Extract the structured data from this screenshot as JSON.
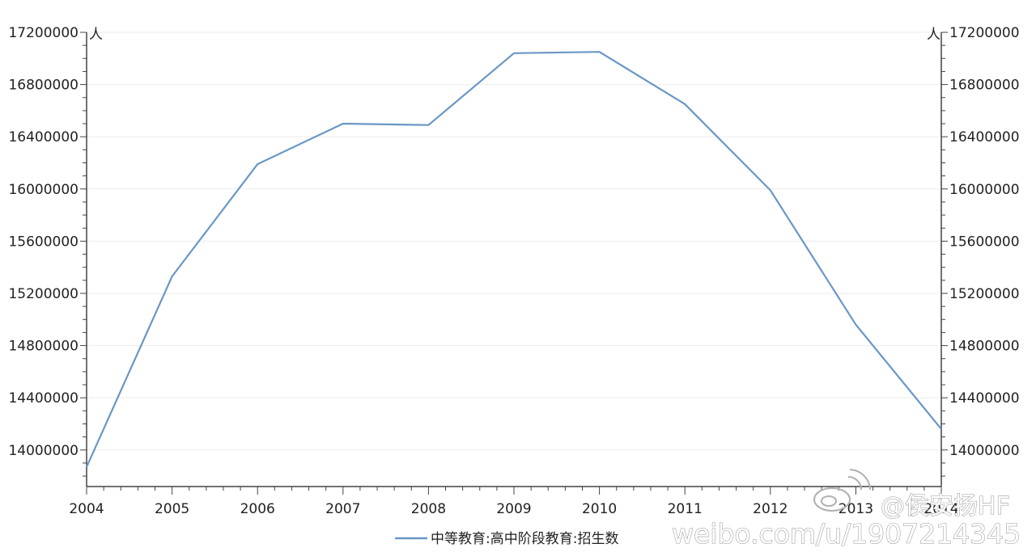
{
  "chart_data": {
    "type": "line",
    "title": "",
    "x": [
      "2004",
      "2005",
      "2006",
      "2007",
      "2008",
      "2009",
      "2010",
      "2011",
      "2012",
      "2013",
      "2014"
    ],
    "series": [
      {
        "name": "中等教育:高中阶段教育:招生数",
        "values": [
          13870000,
          15330000,
          16190000,
          16500000,
          16490000,
          17040000,
          17050000,
          16650000,
          15990000,
          14960000,
          14160000
        ]
      }
    ],
    "x_tick_labels": [
      "2004",
      "2005",
      "2006",
      "2007",
      "2008",
      "2009",
      "2010",
      "2011",
      "2012",
      "2013",
      "2014"
    ],
    "y_tick_labels": [
      "14000000",
      "14400000",
      "14800000",
      "15200000",
      "15600000",
      "16000000",
      "16400000",
      "16800000",
      "17200000"
    ],
    "ylim": [
      13720000,
      17200000
    ],
    "y_unit_left": "人",
    "y_unit_right": "人",
    "grid": true,
    "legend_position": "bottom"
  },
  "colors": {
    "line": "#6a97c4",
    "axis": "#444444",
    "grid": "#ececec"
  },
  "watermark": {
    "handle": "@侯安扬HF",
    "url": "weibo.com/u/1907214345"
  }
}
